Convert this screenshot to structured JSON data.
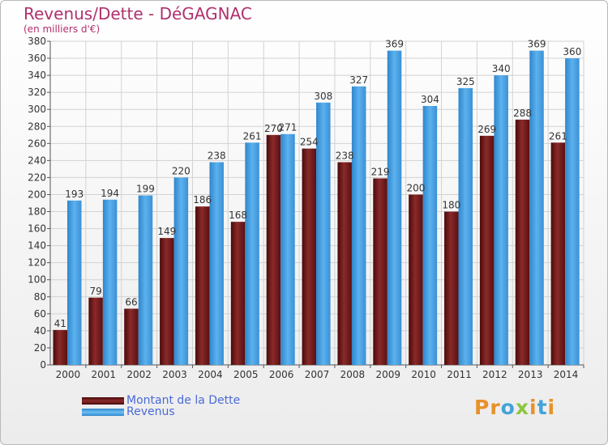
{
  "title": "Revenus/Dette - DéGAGNAC",
  "subtitle": "(en milliers d'€)",
  "logo": "Proxiti",
  "colors": {
    "dette": "#7a2020",
    "revenus": "#4aa3e6",
    "title": "#b0306e",
    "legend_text": "#4a6ad8"
  },
  "chart_data": {
    "type": "bar",
    "categories": [
      "2000",
      "2001",
      "2002",
      "2003",
      "2004",
      "2005",
      "2006",
      "2007",
      "2008",
      "2009",
      "2010",
      "2011",
      "2012",
      "2013",
      "2014"
    ],
    "series": [
      {
        "name": "Montant de la Dette",
        "values": [
          41,
          79,
          66,
          149,
          186,
          168,
          270,
          254,
          238,
          219,
          200,
          180,
          269,
          288,
          261
        ]
      },
      {
        "name": "Revenus",
        "values": [
          193,
          194,
          199,
          220,
          238,
          261,
          271,
          308,
          327,
          369,
          304,
          325,
          340,
          369,
          360
        ]
      }
    ],
    "ylim": [
      0,
      380
    ],
    "yticks": [
      0,
      20,
      40,
      60,
      80,
      100,
      120,
      140,
      160,
      180,
      200,
      220,
      240,
      260,
      280,
      300,
      320,
      340,
      360,
      380
    ],
    "grid": true,
    "legend_position": "bottom-left"
  }
}
